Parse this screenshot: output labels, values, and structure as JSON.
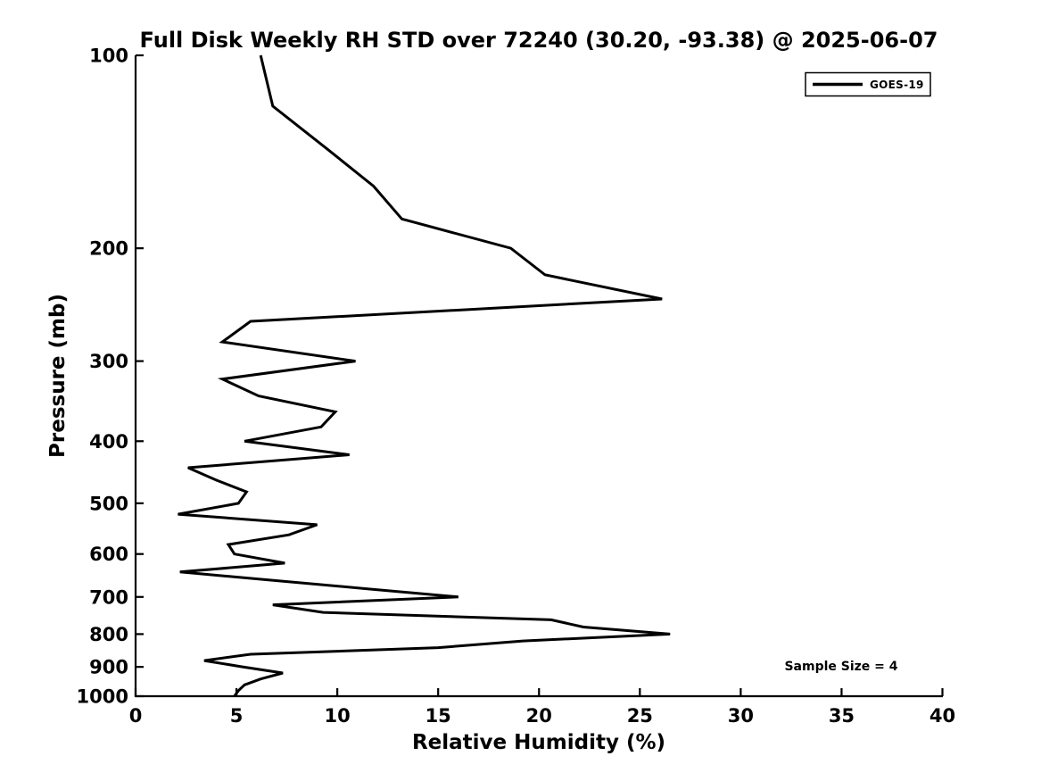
{
  "chart_data": {
    "type": "line",
    "title": "Full Disk Weekly RH STD over 72240 (30.20, -93.38) @ 2025-06-07",
    "xlabel": "Relative Humidity (%)",
    "ylabel": "Pressure (mb)",
    "xlim": [
      0,
      40
    ],
    "xticks": [
      0,
      5,
      10,
      15,
      20,
      25,
      30,
      35,
      40
    ],
    "ylim": [
      100,
      1000
    ],
    "yscale": "log",
    "y_axis_inverted": true,
    "yticks": [
      100,
      200,
      300,
      400,
      500,
      600,
      700,
      800,
      900,
      1000
    ],
    "grid": false,
    "legend": {
      "position": "upper right",
      "entries": [
        {
          "label": "GOES-19",
          "color": "#000000",
          "linewidth": 3
        }
      ]
    },
    "annotations": [
      {
        "text": "Sample Size = 4",
        "position": "lower right"
      }
    ],
    "series": [
      {
        "name": "GOES-19",
        "color": "#000000",
        "pressure_mb": [
          100,
          120,
          140,
          160,
          180,
          200,
          220,
          240,
          260,
          280,
          300,
          320,
          340,
          360,
          380,
          400,
          420,
          440,
          460,
          480,
          500,
          520,
          540,
          560,
          580,
          600,
          620,
          640,
          660,
          680,
          700,
          720,
          740,
          760,
          780,
          800,
          820,
          840,
          860,
          880,
          900,
          920,
          940,
          960,
          980,
          1000
        ],
        "rh_std_percent": [
          6.2,
          6.8,
          9.5,
          11.8,
          13.2,
          18.6,
          20.3,
          26.1,
          5.7,
          4.3,
          10.9,
          4.3,
          6.1,
          9.9,
          9.2,
          5.4,
          10.6,
          2.6,
          4.0,
          5.5,
          5.1,
          2.1,
          9.0,
          7.6,
          4.6,
          4.9,
          7.4,
          2.2,
          6.9,
          11.5,
          16.0,
          6.8,
          9.3,
          20.6,
          22.2,
          26.5,
          19.2,
          15.0,
          5.7,
          3.4,
          5.3,
          7.3,
          6.2,
          5.4,
          5.1,
          4.9
        ]
      }
    ]
  },
  "colors": {
    "background": "#ffffff",
    "line": "#000000",
    "text": "#000000"
  }
}
